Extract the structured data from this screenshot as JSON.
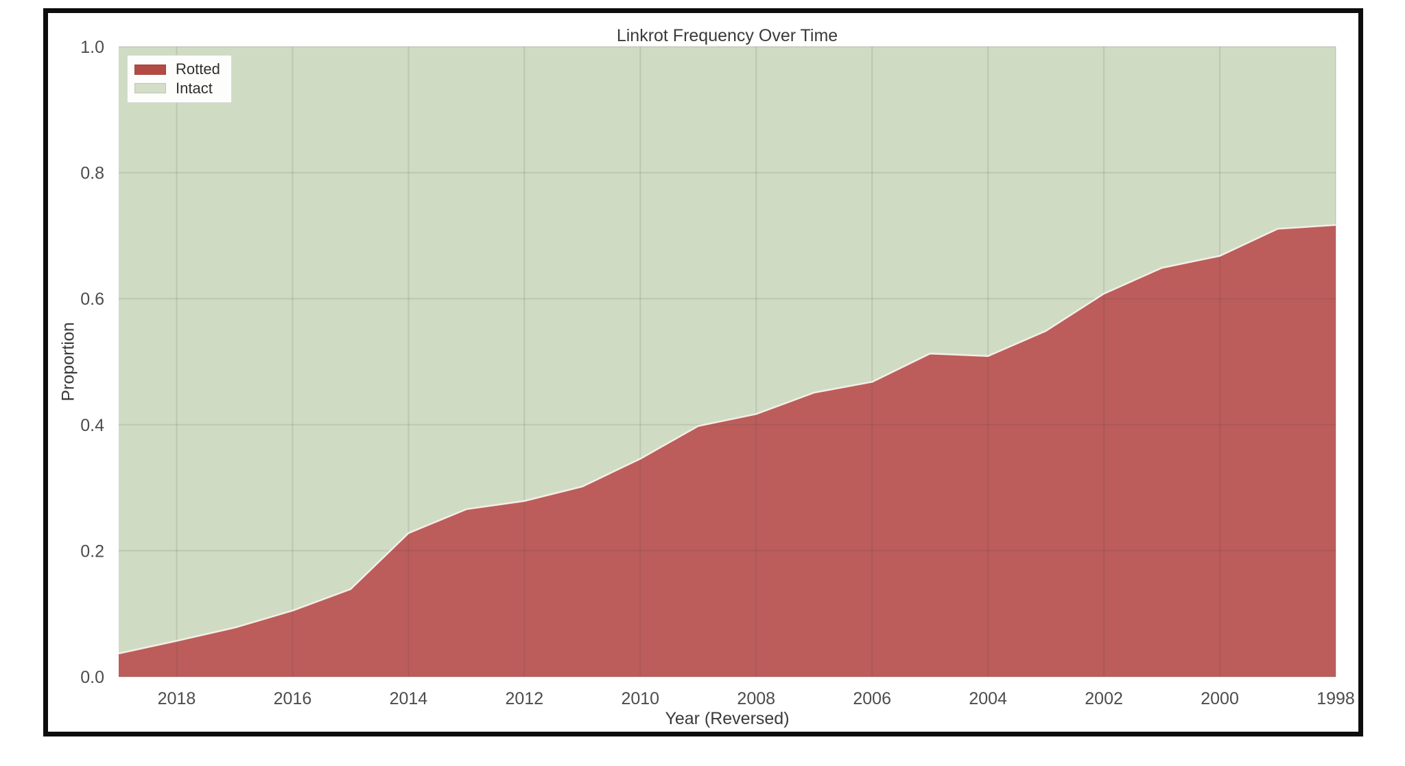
{
  "chart_data": {
    "type": "area",
    "stacked": true,
    "title": "Linkrot Frequency Over Time",
    "xlabel": "Year (Reversed)",
    "ylabel": "Proportion",
    "x_axis_reversed": true,
    "xlim_left": 2019,
    "xlim_right": 1998,
    "ylim": [
      0,
      1
    ],
    "grid": true,
    "x": [
      2019,
      2018,
      2017,
      2016,
      2015,
      2014,
      2013,
      2012,
      2011,
      2010,
      2009,
      2008,
      2007,
      2006,
      2005,
      2004,
      2003,
      2002,
      2001,
      2000,
      1999,
      1998
    ],
    "series": [
      {
        "name": "Rotted",
        "color": "#bc5d5b",
        "values": [
          0.037,
          0.057,
          0.078,
          0.105,
          0.139,
          0.228,
          0.266,
          0.279,
          0.302,
          0.346,
          0.398,
          0.417,
          0.451,
          0.468,
          0.513,
          0.509,
          0.549,
          0.608,
          0.649,
          0.668,
          0.711,
          0.717
        ]
      },
      {
        "name": "Intact",
        "color": "#d0dbc4",
        "values": [
          0.963,
          0.943,
          0.922,
          0.895,
          0.861,
          0.772,
          0.734,
          0.721,
          0.698,
          0.654,
          0.602,
          0.583,
          0.549,
          0.532,
          0.487,
          0.491,
          0.451,
          0.392,
          0.351,
          0.332,
          0.289,
          0.283
        ]
      }
    ],
    "x_ticks": [
      2018,
      2016,
      2014,
      2012,
      2010,
      2008,
      2006,
      2004,
      2002,
      2000,
      1998
    ],
    "y_ticks": [
      "1.0",
      "0.8",
      "0.6",
      "0.4",
      "0.2",
      "0.0"
    ],
    "boundary_line_color": "#f4efe6",
    "frame_color": "#0d0d0d",
    "legend": {
      "position": "upper-left",
      "items": [
        {
          "label": "Rotted",
          "color": "#b34a44"
        },
        {
          "label": "Intact",
          "color": "#d3ddc8"
        }
      ]
    }
  }
}
